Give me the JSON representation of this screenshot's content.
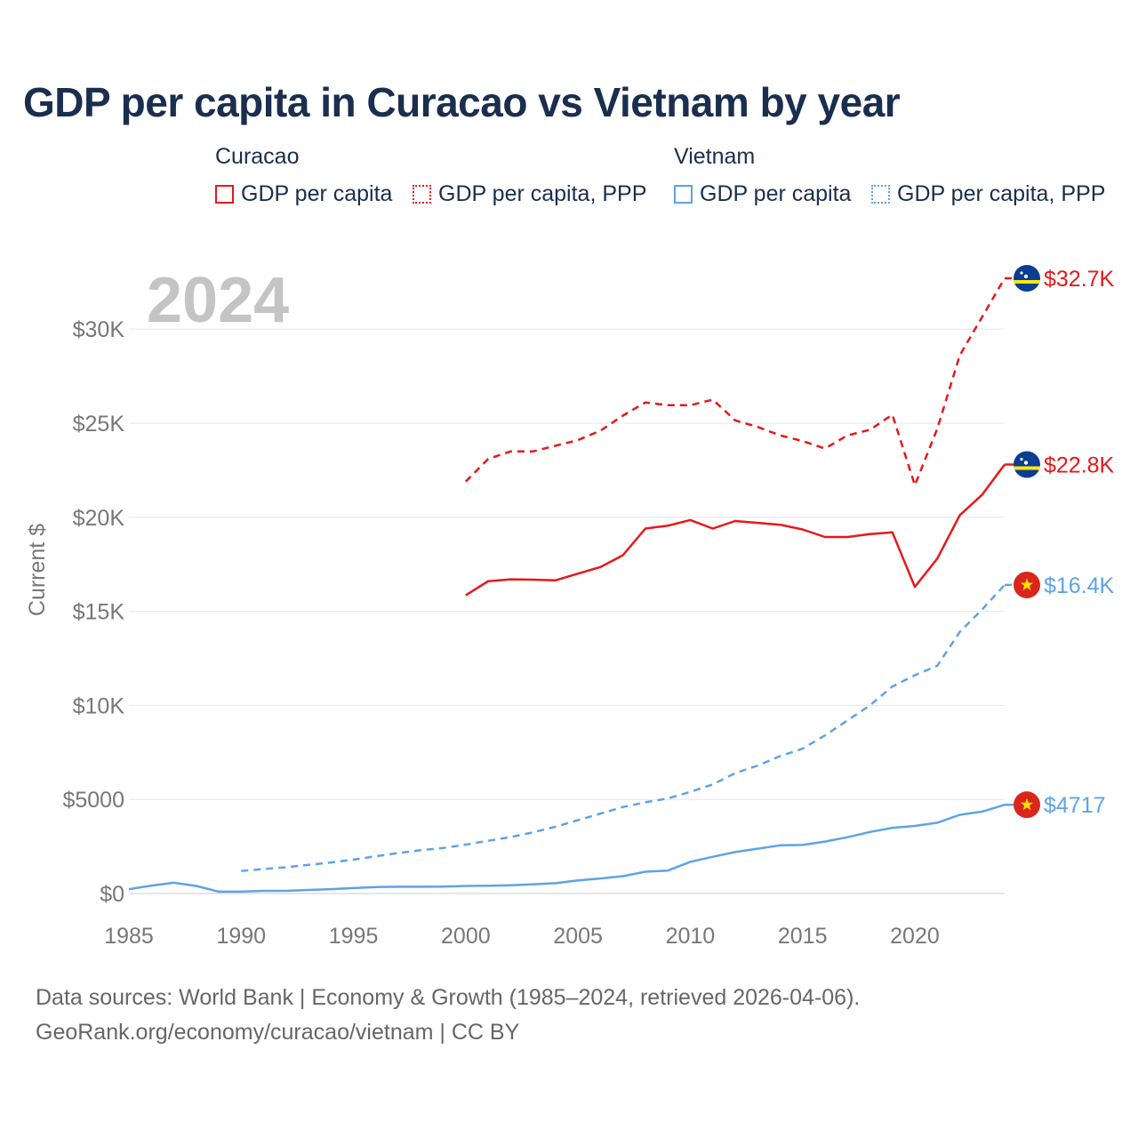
{
  "title": "GDP per capita in Curacao vs Vietnam by year",
  "legend": {
    "groups": [
      {
        "name": "Curacao",
        "color": "#e8171a",
        "items": [
          {
            "label": "GDP per capita",
            "style": "solid"
          },
          {
            "label": "GDP per capita, PPP",
            "style": "dotted"
          }
        ]
      },
      {
        "name": "Vietnam",
        "color": "#5da3e6",
        "items": [
          {
            "label": "GDP per capita",
            "style": "solid"
          },
          {
            "label": "GDP per capita, PPP",
            "style": "dotted"
          }
        ]
      }
    ]
  },
  "year_overlay": "2024",
  "footer": {
    "line1": "Data sources: World Bank | Economy & Growth (1985–2024, retrieved 2026-04-06).",
    "line2": "GeoRank.org/economy/curacao/vietnam | CC BY"
  },
  "chart_data": {
    "type": "line",
    "title": "GDP per capita in Curacao vs Vietnam by year",
    "xlabel": "",
    "ylabel": "Current $",
    "xlim": [
      1985,
      2024
    ],
    "ylim": [
      0,
      32700
    ],
    "grid": true,
    "x_ticks": [
      1985,
      1990,
      1995,
      2000,
      2005,
      2010,
      2015,
      2020
    ],
    "x_tick_labels": [
      "1985",
      "1990",
      "1995",
      "2000",
      "2005",
      "2010",
      "2015",
      "2020"
    ],
    "y_ticks": [
      0,
      5000,
      10000,
      15000,
      20000,
      25000,
      30000
    ],
    "y_tick_labels": [
      "$0",
      "$5000",
      "$10K",
      "$15K",
      "$20K",
      "$25K",
      "$30K"
    ],
    "series": [
      {
        "name": "Curacao GDP per capita, PPP",
        "country": "Curacao",
        "color": "#e8171a",
        "dash": "dashed",
        "end_label": "$32.7K",
        "x": [
          2000,
          2001,
          2002,
          2003,
          2004,
          2005,
          2006,
          2007,
          2008,
          2009,
          2010,
          2011,
          2012,
          2013,
          2014,
          2015,
          2016,
          2017,
          2018,
          2019,
          2020,
          2021,
          2022,
          2023,
          2024
        ],
        "values": [
          21900,
          23100,
          23500,
          23500,
          23800,
          24100,
          24600,
          25400,
          26100,
          25950,
          25950,
          26250,
          25150,
          24800,
          24350,
          24050,
          23650,
          24350,
          24650,
          25450,
          21700,
          24700,
          28600,
          30650,
          32700
        ]
      },
      {
        "name": "Curacao GDP per capita",
        "country": "Curacao",
        "color": "#e8171a",
        "dash": "solid",
        "end_label": "$22.8K",
        "x": [
          2000,
          2001,
          2002,
          2003,
          2004,
          2005,
          2006,
          2007,
          2008,
          2009,
          2010,
          2011,
          2012,
          2013,
          2014,
          2015,
          2016,
          2017,
          2018,
          2019,
          2020,
          2021,
          2022,
          2023,
          2024
        ],
        "values": [
          15850,
          16600,
          16700,
          16680,
          16650,
          17000,
          17350,
          17980,
          19400,
          19550,
          19850,
          19400,
          19800,
          19700,
          19600,
          19350,
          18950,
          18950,
          19100,
          19200,
          16300,
          17800,
          20100,
          21200,
          22800
        ]
      },
      {
        "name": "Vietnam GDP per capita, PPP",
        "country": "Vietnam",
        "color": "#5da3e6",
        "dash": "dashed",
        "end_label": "$16.4K",
        "x": [
          1990,
          1991,
          1992,
          1993,
          1994,
          1995,
          1996,
          1997,
          1998,
          1999,
          2000,
          2001,
          2002,
          2003,
          2004,
          2005,
          2006,
          2007,
          2008,
          2009,
          2010,
          2011,
          2012,
          2013,
          2014,
          2015,
          2016,
          2017,
          2018,
          2019,
          2020,
          2021,
          2022,
          2023,
          2024
        ],
        "values": [
          1200,
          1300,
          1400,
          1520,
          1650,
          1800,
          1980,
          2150,
          2300,
          2420,
          2600,
          2800,
          3000,
          3250,
          3550,
          3900,
          4250,
          4600,
          4850,
          5050,
          5400,
          5800,
          6400,
          6800,
          7300,
          7700,
          8400,
          9200,
          10000,
          11000,
          11600,
          12100,
          13900,
          15100,
          16400
        ]
      },
      {
        "name": "Vietnam GDP per capita",
        "country": "Vietnam",
        "color": "#5da3e6",
        "dash": "solid",
        "end_label": "$4717",
        "x": [
          1985,
          1986,
          1987,
          1988,
          1989,
          1990,
          1991,
          1992,
          1993,
          1994,
          1995,
          1996,
          1997,
          1998,
          1999,
          2000,
          2001,
          2002,
          2003,
          2004,
          2005,
          2006,
          2007,
          2008,
          2009,
          2010,
          2011,
          2012,
          2013,
          2014,
          2015,
          2016,
          2017,
          2018,
          2019,
          2020,
          2021,
          2022,
          2023,
          2024
        ],
        "values": [
          230,
          420,
          570,
          400,
          100,
          100,
          140,
          140,
          190,
          230,
          290,
          340,
          360,
          360,
          370,
          400,
          410,
          440,
          490,
          550,
          700,
          800,
          920,
          1160,
          1220,
          1680,
          1950,
          2200,
          2380,
          2560,
          2580,
          2760,
          2990,
          3270,
          3490,
          3590,
          3760,
          4180,
          4350,
          4717
        ]
      }
    ]
  }
}
